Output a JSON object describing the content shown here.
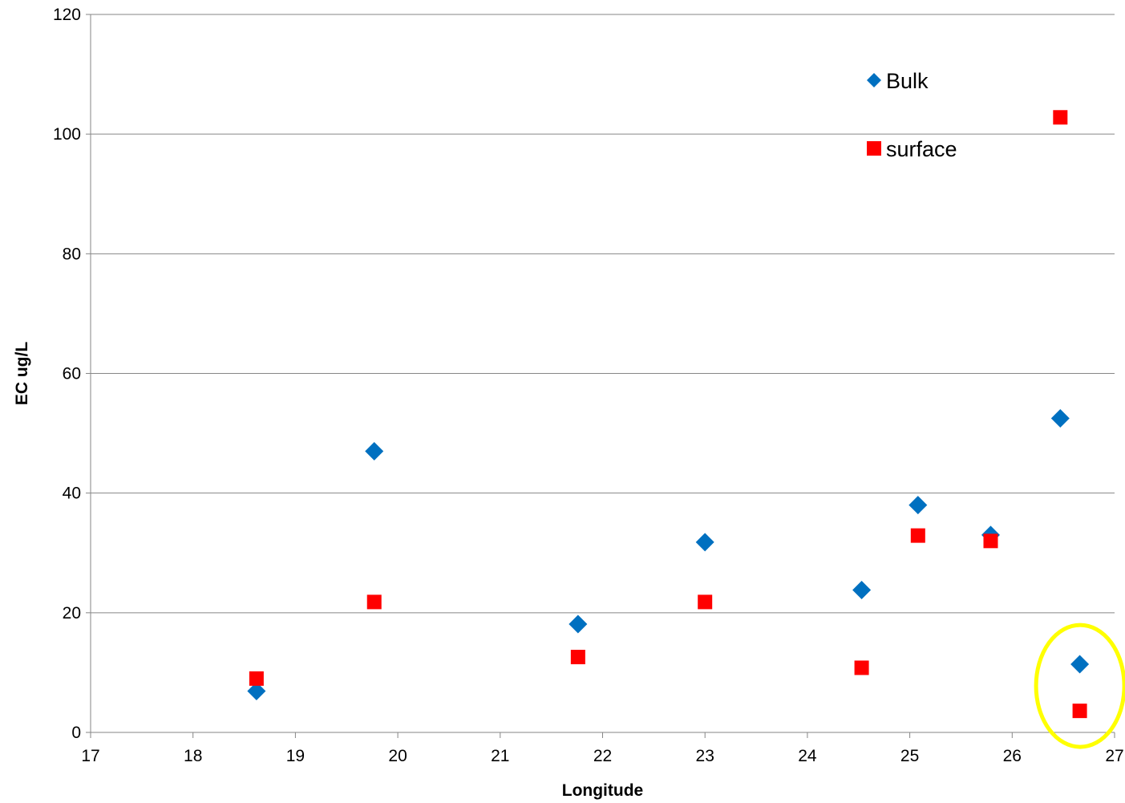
{
  "chart_data": {
    "type": "scatter",
    "title": "",
    "xlabel": "Longitude",
    "ylabel": "EC ug/L",
    "xlim": [
      17,
      27
    ],
    "ylim": [
      0,
      120
    ],
    "xticks": [
      "17",
      "18",
      "19",
      "20",
      "21",
      "22",
      "23",
      "24",
      "25",
      "26",
      "27"
    ],
    "yticks": [
      "0",
      "20",
      "40",
      "60",
      "80",
      "100",
      "120"
    ],
    "grid": "horizontal",
    "legend_position": "top-right",
    "series": [
      {
        "name": "Bulk",
        "marker": "diamond",
        "color": "#0070C0",
        "points": [
          {
            "x": 18.62,
            "y": 6.9
          },
          {
            "x": 19.77,
            "y": 47.0
          },
          {
            "x": 21.76,
            "y": 18.1
          },
          {
            "x": 23.0,
            "y": 31.8
          },
          {
            "x": 24.53,
            "y": 23.8
          },
          {
            "x": 25.08,
            "y": 38.0
          },
          {
            "x": 25.79,
            "y": 33.0
          },
          {
            "x": 26.47,
            "y": 52.5
          },
          {
            "x": 26.66,
            "y": 11.4
          }
        ]
      },
      {
        "name": "surface",
        "marker": "square",
        "color": "#FF0000",
        "points": [
          {
            "x": 18.62,
            "y": 9.0
          },
          {
            "x": 19.77,
            "y": 21.8
          },
          {
            "x": 21.76,
            "y": 12.6
          },
          {
            "x": 23.0,
            "y": 21.8
          },
          {
            "x": 24.53,
            "y": 10.8
          },
          {
            "x": 25.08,
            "y": 32.9
          },
          {
            "x": 25.79,
            "y": 32.0
          },
          {
            "x": 26.47,
            "y": 102.8
          },
          {
            "x": 26.66,
            "y": 3.6
          }
        ]
      }
    ],
    "annotations": [
      {
        "type": "ellipse",
        "color": "#FFFF00",
        "around_x": 26.66,
        "around_y": 7.5
      }
    ]
  }
}
